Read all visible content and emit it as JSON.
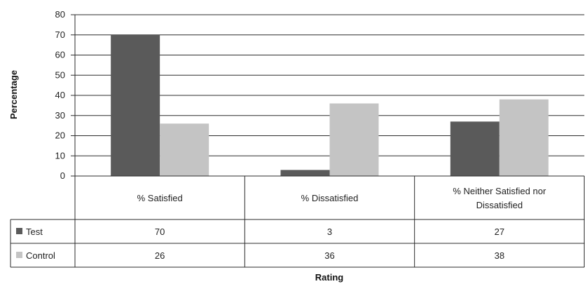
{
  "chart_data": {
    "type": "bar",
    "categories": [
      "% Satisfied",
      "% Dissatisfied",
      "% Neither Satisfied nor Dissatisfied"
    ],
    "series": [
      {
        "name": "Test",
        "values": [
          70,
          3,
          27
        ],
        "color": "#5a5a5a"
      },
      {
        "name": "Control",
        "values": [
          26,
          36,
          38
        ],
        "color": "#c4c4c4"
      }
    ],
    "xlabel": "Rating",
    "ylabel": "Percentage",
    "ylim": [
      0,
      80
    ],
    "yticks": [
      0,
      10,
      20,
      30,
      40,
      50,
      60,
      70,
      80
    ],
    "grid": true,
    "legend": "data-table"
  }
}
